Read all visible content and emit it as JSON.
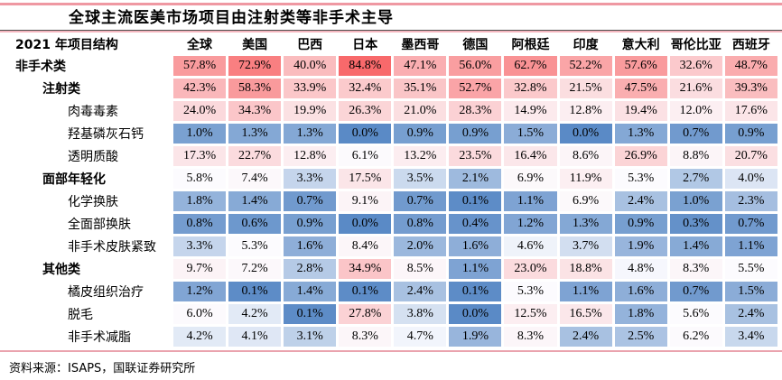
{
  "accent_colors": {
    "top_rule": "#ef98a2",
    "title_rule_dark": "#4d4d4d",
    "title_rule_pink": "#f4b6bf",
    "bottom_rule": "#eaa3ae"
  },
  "chart_data": {
    "type": "heatmap",
    "title": "全球主流医美市场项目由注射类等非手术主导",
    "corner_header": "2021 年项目结构",
    "unit": "%",
    "columns": [
      "全球",
      "美国",
      "巴西",
      "日本",
      "墨西哥",
      "德国",
      "阿根廷",
      "印度",
      "意大利",
      "哥伦比亚",
      "西班牙"
    ],
    "rows": [
      {
        "label": "非手术类",
        "indent": 0,
        "bold": true,
        "values": [
          57.8,
          72.9,
          40.0,
          84.8,
          47.1,
          56.0,
          62.7,
          52.2,
          57.6,
          32.6,
          48.7
        ]
      },
      {
        "label": "注射类",
        "indent": 1,
        "bold": true,
        "values": [
          42.3,
          58.3,
          33.9,
          32.4,
          35.1,
          52.7,
          32.8,
          21.5,
          47.5,
          21.6,
          39.3
        ]
      },
      {
        "label": "肉毒毒素",
        "indent": 2,
        "bold": false,
        "values": [
          24.0,
          34.3,
          19.9,
          26.3,
          21.0,
          28.3,
          14.9,
          12.8,
          19.4,
          12.0,
          17.6
        ]
      },
      {
        "label": "羟基磷灰石钙",
        "indent": 2,
        "bold": false,
        "values": [
          1.0,
          1.3,
          1.3,
          0.0,
          0.9,
          0.9,
          1.5,
          0.0,
          1.3,
          0.7,
          0.9
        ]
      },
      {
        "label": "透明质酸",
        "indent": 2,
        "bold": false,
        "values": [
          17.3,
          22.7,
          12.8,
          6.1,
          13.2,
          23.5,
          16.4,
          8.6,
          26.9,
          8.8,
          20.7
        ]
      },
      {
        "label": "面部年轻化",
        "indent": 1,
        "bold": true,
        "values": [
          5.8,
          7.4,
          3.3,
          17.5,
          3.5,
          2.1,
          6.9,
          11.9,
          5.3,
          2.7,
          4.0
        ]
      },
      {
        "label": "化学换肤",
        "indent": 2,
        "bold": false,
        "values": [
          1.8,
          1.4,
          0.7,
          9.1,
          0.7,
          0.1,
          1.1,
          6.9,
          2.4,
          1.0,
          2.3
        ]
      },
      {
        "label": "全面部换肤",
        "indent": 2,
        "bold": false,
        "values": [
          0.8,
          0.6,
          0.9,
          0.0,
          0.8,
          0.4,
          1.2,
          1.3,
          0.9,
          0.3,
          0.7
        ]
      },
      {
        "label": "非手术皮肤紧致",
        "indent": 2,
        "bold": false,
        "values": [
          3.3,
          5.3,
          1.6,
          8.4,
          2.0,
          1.6,
          4.6,
          3.7,
          1.9,
          1.4,
          1.1
        ]
      },
      {
        "label": "其他类",
        "indent": 1,
        "bold": true,
        "values": [
          9.7,
          7.2,
          2.8,
          34.9,
          8.5,
          1.1,
          23.0,
          18.8,
          4.8,
          8.3,
          5.5
        ]
      },
      {
        "label": "橘皮组织治疗",
        "indent": 2,
        "bold": false,
        "values": [
          1.2,
          0.1,
          1.4,
          0.1,
          2.4,
          0.1,
          5.3,
          1.1,
          1.6,
          0.7,
          1.5
        ]
      },
      {
        "label": "脱毛",
        "indent": 2,
        "bold": false,
        "values": [
          6.0,
          4.2,
          0.1,
          27.8,
          3.8,
          0.0,
          12.5,
          16.5,
          1.8,
          5.6,
          2.4
        ]
      },
      {
        "label": "非手术减脂",
        "indent": 2,
        "bold": false,
        "values": [
          4.2,
          4.1,
          3.1,
          8.3,
          4.7,
          1.9,
          8.3,
          2.4,
          2.5,
          6.2,
          3.4
        ]
      }
    ],
    "color_scale": {
      "min_value": 0.0,
      "min_color": "#5A8AC6",
      "mid_value": 5.0,
      "mid_color": "#FCFCFF",
      "max_value": 84.8,
      "max_color": "#F8696B"
    },
    "legend_position": "none",
    "source": "资料来源：ISAPS，国联证券研究所"
  }
}
